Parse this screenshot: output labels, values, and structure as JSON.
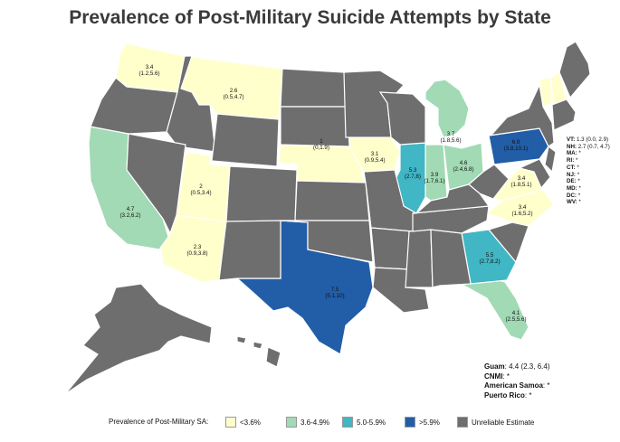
{
  "title": "Prevalence of Post-Military Suicide Attempts by State",
  "colors": {
    "lt3_6": "#ffffcc",
    "c3_6_4_9": "#a1dab4",
    "c5_0_5_9": "#41b6c4",
    "gt5_9": "#225ea8",
    "unreliable": "#6e6e6e"
  },
  "states": [
    {
      "abbr": "WA",
      "value": "3.4",
      "ci": "(1.2,5.6)"
    },
    {
      "abbr": "MT",
      "value": "2.6",
      "ci": "(0.5,4.7)"
    },
    {
      "abbr": "CA",
      "value": "4.7",
      "ci": "(3.2,6.2)"
    },
    {
      "abbr": "UT",
      "value": "2",
      "ci": "(0.5,3.4)"
    },
    {
      "abbr": "AZ",
      "value": "2.3",
      "ci": "(0.9,3.8)"
    },
    {
      "abbr": "NE",
      "value": "1",
      "ci": "(0,1.9)"
    },
    {
      "abbr": "IA",
      "value": "3.1",
      "ci": "(0.9,5.4)"
    },
    {
      "abbr": "TX",
      "value": "7.5",
      "ci": "(5.1,10)"
    },
    {
      "abbr": "IL",
      "value": "5.3",
      "ci": "(2.7,8)"
    },
    {
      "abbr": "MI",
      "value": "3.7",
      "ci": "(1.8,5.6)"
    },
    {
      "abbr": "IN",
      "value": "3.9",
      "ci": "(1.7,6.1)"
    },
    {
      "abbr": "OH",
      "value": "4.6",
      "ci": "(2.4,6.8)"
    },
    {
      "abbr": "PA",
      "value": "6.9",
      "ci": "(3.8,10.1)"
    },
    {
      "abbr": "VA",
      "value": "3.4",
      "ci": "(1.8,5.1)"
    },
    {
      "abbr": "NC",
      "value": "3.4",
      "ci": "(1.6,5.2)"
    },
    {
      "abbr": "GA",
      "value": "5.5",
      "ci": "(2.7,8.2)"
    },
    {
      "abbr": "FL",
      "value": "4.1",
      "ci": "(2.5,5.6)"
    }
  ],
  "northeast_notes": [
    {
      "key": "VT:",
      "value": " 1.3 (0.0, 2.9)"
    },
    {
      "key": "NH:",
      "value": " 2.7 (0.7, 4.7)"
    },
    {
      "key": "MA:",
      "value": " *"
    },
    {
      "key": "RI:",
      "value": " *"
    },
    {
      "key": "CT:",
      "value": " *"
    },
    {
      "key": "NJ:",
      "value": " *"
    },
    {
      "key": "DE:",
      "value": " *"
    },
    {
      "key": "MD:",
      "value": " *"
    },
    {
      "key": "DC:",
      "value": " *"
    },
    {
      "key": "WV:",
      "value": " *"
    }
  ],
  "territories": [
    {
      "key": "Guam",
      "value": ": 4.4 (2.3, 6.4)"
    },
    {
      "key": "CNMI",
      "value": ": *"
    },
    {
      "key": "American Samoa",
      "value": ": *"
    },
    {
      "key": "Puerto Rico",
      "value": ": *"
    }
  ],
  "legend": {
    "title": "Prevalence of Post-Military SA:",
    "items": [
      {
        "label": "<3.6%",
        "color": "#ffffcc"
      },
      {
        "label": "3.6-4.9%",
        "color": "#a1dab4"
      },
      {
        "label": "5.0-5.9%",
        "color": "#41b6c4"
      },
      {
        "label": ">5.9%",
        "color": "#225ea8"
      },
      {
        "label": "Unreliable Estimate",
        "color": "#6e6e6e"
      }
    ]
  }
}
